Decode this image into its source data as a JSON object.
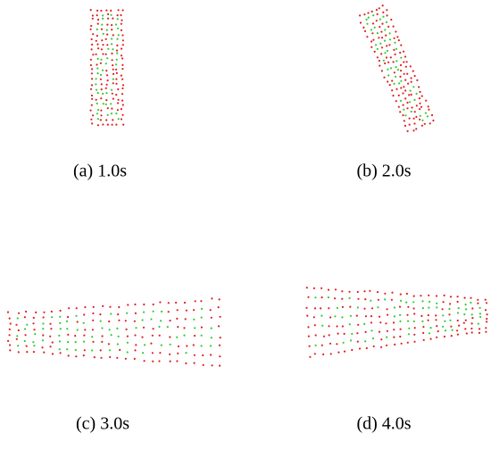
{
  "captions": [
    "(a) 1.0s",
    "(b) 2.0s",
    "(c) 3.0s",
    "(d) 4.0s"
  ]
}
